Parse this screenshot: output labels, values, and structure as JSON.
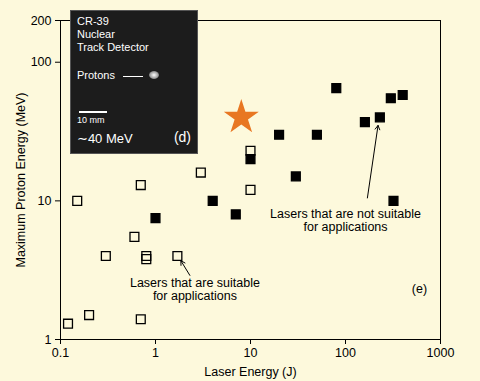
{
  "chart_data": {
    "type": "scatter",
    "xlabel": "Laser Energy (J)",
    "ylabel": "Maximum Proton Energy (MeV)",
    "log": true,
    "grid": false,
    "xlim": [
      0.1,
      1000
    ],
    "xticks": [
      0.1,
      1,
      10,
      100,
      1000
    ],
    "ylim": [
      1,
      200
    ],
    "yticks": [
      1,
      10,
      100,
      200
    ],
    "series": [
      {
        "name": "Lasers that are suitable for applications",
        "color": "#000000",
        "marker": "square-open",
        "x": [
          0.12,
          0.15,
          0.2,
          0.3,
          0.6,
          0.7,
          0.7,
          0.8,
          0.8,
          1.7,
          3,
          10,
          10
        ],
        "values": [
          1.3,
          10,
          1.5,
          4,
          5.5,
          13,
          1.4,
          4,
          3.8,
          4,
          16,
          23,
          12
        ]
      },
      {
        "name": "Lasers that are not suitable for applications",
        "color": "#000000",
        "marker": "square",
        "x": [
          1,
          4,
          7,
          10,
          20,
          30,
          50,
          80,
          160,
          230,
          300,
          320,
          400
        ],
        "values": [
          7.5,
          10,
          8,
          20,
          30,
          15,
          30,
          65,
          37,
          40,
          55,
          10,
          58
        ]
      }
    ],
    "highlight": {
      "x": [
        8
      ],
      "values": [
        40
      ],
      "color": "#e87722",
      "marker": "star"
    },
    "annotations": [
      {
        "text": "Lasers that are suitable\nfor applications",
        "x": 2.6,
        "y": 2.3,
        "arrow_from": [
          2.3,
          2.9
        ],
        "arrow_to": [
          1.85,
          3.7
        ]
      },
      {
        "text": "Lasers that are not suitable\nfor applications",
        "x": 100,
        "y": 7.2,
        "arrow_from": [
          170,
          10.5
        ],
        "arrow_to": [
          220,
          35
        ]
      },
      {
        "text": "(e)",
        "x": 600,
        "y": 2.3
      }
    ],
    "inset": {
      "title_lines": [
        "CR-39",
        "Nuclear",
        "Track Detector"
      ],
      "pointer_label": "Protons",
      "scale_label": "10 mm",
      "energy_label": "∼40 MeV",
      "panel_label": "(d)"
    }
  }
}
